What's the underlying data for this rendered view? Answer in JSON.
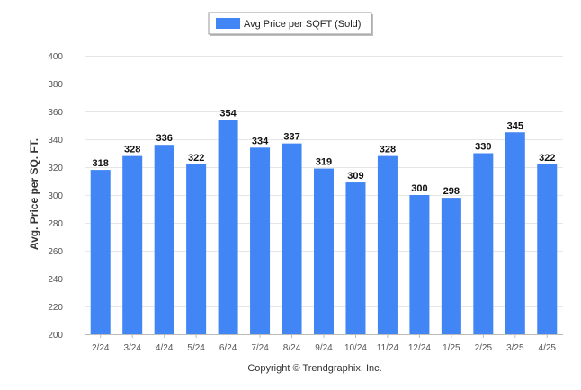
{
  "chart_data": {
    "type": "bar",
    "categories": [
      "2/24",
      "3/24",
      "4/24",
      "5/24",
      "6/24",
      "7/24",
      "8/24",
      "9/24",
      "10/24",
      "11/24",
      "12/24",
      "1/25",
      "2/25",
      "3/25",
      "4/25"
    ],
    "series": [
      {
        "name": "Avg Price per SQFT (Sold)",
        "values": [
          318,
          328,
          336,
          322,
          354,
          334,
          337,
          319,
          309,
          328,
          300,
          298,
          330,
          345,
          322
        ],
        "color": "#4285f4"
      }
    ],
    "ylabel": "Avg. Price per SQ. FT.",
    "xlabel": "",
    "ylim": [
      200,
      400
    ],
    "yticks": [
      200,
      220,
      240,
      260,
      280,
      300,
      320,
      340,
      360,
      380,
      400
    ],
    "grid": true,
    "legend_position": "top-center",
    "data_labels": true
  },
  "footer": {
    "copyright": "Copyright © Trendgraphix, Inc."
  }
}
